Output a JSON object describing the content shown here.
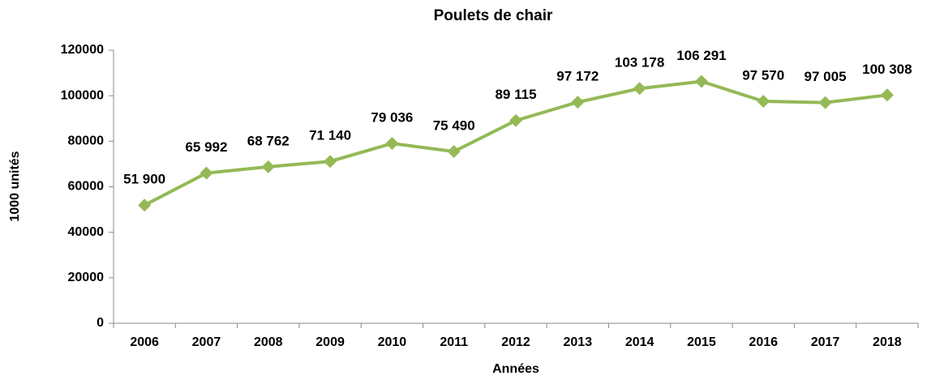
{
  "chart_data": {
    "type": "line",
    "title": "Poulets de chair",
    "x_label": "Années",
    "y_label": "1000 unités",
    "categories": [
      "2006",
      "2007",
      "2008",
      "2009",
      "2010",
      "2011",
      "2012",
      "2013",
      "2014",
      "2015",
      "2016",
      "2017",
      "2018"
    ],
    "series": [
      {
        "name": "Poulets de chair",
        "color": "#94b956",
        "values": [
          51900,
          65992,
          68762,
          71140,
          79036,
          75490,
          89115,
          97172,
          103178,
          106291,
          97570,
          97005,
          100308
        ],
        "value_labels": [
          "51 900",
          "65 992",
          "68 762",
          "71 140",
          "79 036",
          "75 490",
          "89 115",
          "97 172",
          "103 178",
          "106 291",
          "97 570",
          "97 005",
          "100 308"
        ]
      }
    ],
    "ylim": [
      0,
      120000
    ],
    "yticks": [
      0,
      20000,
      40000,
      60000,
      80000,
      100000,
      120000
    ],
    "grid": false
  }
}
